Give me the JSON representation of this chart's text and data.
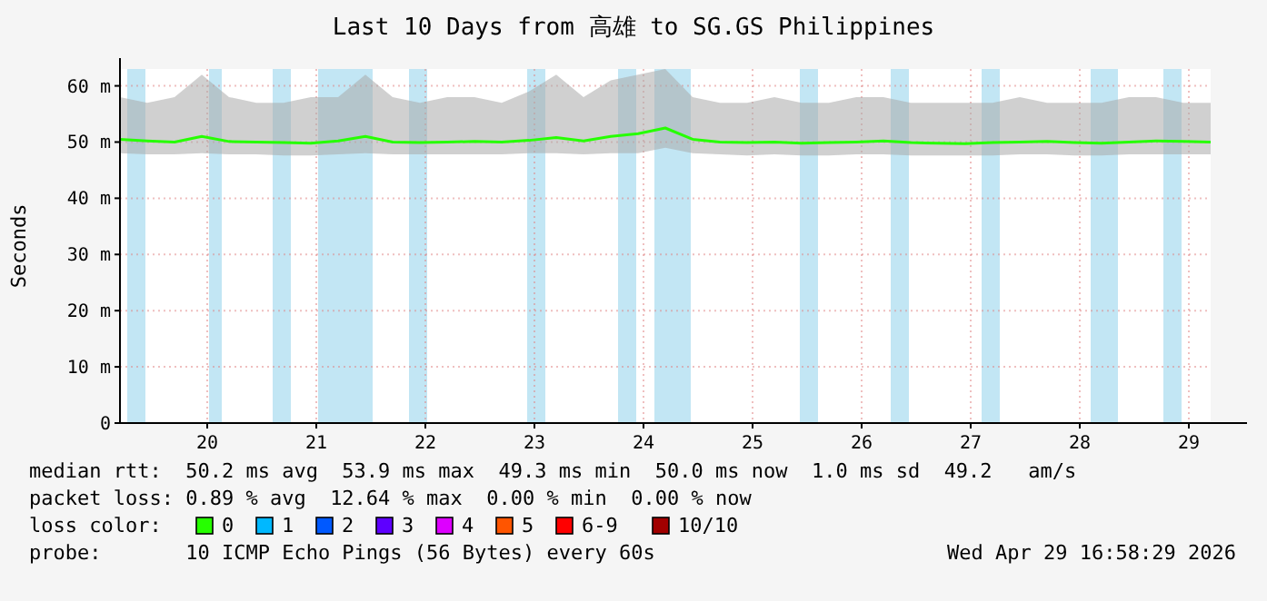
{
  "chart_data": {
    "type": "line",
    "title": "Last 10 Days from 高雄 to SG.GS Philippines",
    "ylabel": "Seconds",
    "x": [
      "2026-04-19T04:48",
      "2026-04-19T10:48",
      "2026-04-19T16:48",
      "2026-04-19T22:48",
      "2026-04-20T04:48",
      "2026-04-20T10:48",
      "2026-04-20T16:48",
      "2026-04-20T22:48",
      "2026-04-21T04:48",
      "2026-04-21T10:48",
      "2026-04-21T16:48",
      "2026-04-21T22:48",
      "2026-04-22T04:48",
      "2026-04-22T10:48",
      "2026-04-22T16:48",
      "2026-04-22T22:48",
      "2026-04-23T04:48",
      "2026-04-23T10:48",
      "2026-04-23T16:48",
      "2026-04-23T22:48",
      "2026-04-24T04:48",
      "2026-04-24T10:48",
      "2026-04-24T16:48",
      "2026-04-24T22:48",
      "2026-04-25T04:48",
      "2026-04-25T10:48",
      "2026-04-25T16:48",
      "2026-04-25T22:48",
      "2026-04-26T04:48",
      "2026-04-26T10:48",
      "2026-04-26T16:48",
      "2026-04-26T22:48",
      "2026-04-27T04:48",
      "2026-04-27T10:48",
      "2026-04-27T16:48",
      "2026-04-27T22:48",
      "2026-04-28T04:48",
      "2026-04-28T10:48",
      "2026-04-28T16:48",
      "2026-04-28T22:48",
      "2026-04-29T04:48"
    ],
    "series": [
      {
        "name": "0",
        "color": "#26ff00",
        "values": [
          50.5,
          50.2,
          50,
          51,
          50.1,
          50,
          49.9,
          49.8,
          50.2,
          51,
          50,
          49.9,
          50,
          50.1,
          50,
          50.3,
          50.8,
          50.2,
          51,
          51.5,
          52.5,
          50.5,
          50,
          49.9,
          50,
          49.8,
          49.9,
          50,
          50.2,
          49.9,
          49.8,
          49.7,
          49.9,
          50,
          50.1,
          49.9,
          49.8,
          50,
          50.2,
          50.1,
          50
        ],
        "lower": [
          48,
          47.8,
          47.8,
          48,
          47.8,
          47.8,
          47.6,
          47.6,
          47.8,
          48,
          47.8,
          47.8,
          47.8,
          47.8,
          47.8,
          48,
          48,
          47.8,
          48,
          48,
          49,
          48,
          47.8,
          47.6,
          47.8,
          47.6,
          47.6,
          47.8,
          47.8,
          47.6,
          47.6,
          47.6,
          47.6,
          47.8,
          47.8,
          47.6,
          47.6,
          47.8,
          47.8,
          47.8,
          47.8
        ],
        "upper": [
          58,
          57,
          58,
          62,
          58,
          57,
          57,
          58,
          58,
          62,
          58,
          57,
          58,
          58,
          57,
          59,
          62,
          58,
          61,
          62,
          63,
          58,
          57,
          57,
          58,
          57,
          57,
          58,
          58,
          57,
          57,
          57,
          57,
          58,
          57,
          57,
          57,
          58,
          58,
          57,
          57
        ]
      },
      {
        "name": "1",
        "color": "#00b8ff",
        "values": [
          null,
          null,
          null,
          null,
          null,
          null,
          null,
          null,
          null,
          null,
          null,
          null,
          null,
          null,
          null,
          null,
          null,
          null,
          null,
          null,
          null,
          null,
          null,
          null,
          null,
          null,
          null,
          null,
          null,
          null,
          null,
          null,
          null,
          null,
          null,
          null,
          null,
          null,
          null,
          null,
          null
        ]
      },
      {
        "name": "2",
        "color": "#0059ff",
        "values": [
          null,
          null,
          null,
          null,
          null,
          null,
          null,
          null,
          null,
          null,
          null,
          null,
          null,
          null,
          null,
          null,
          null,
          null,
          null,
          null,
          null,
          null,
          null,
          null,
          null,
          null,
          null,
          null,
          null,
          null,
          null,
          null,
          null,
          null,
          null,
          null,
          null,
          null,
          null,
          null,
          null
        ]
      },
      {
        "name": "3",
        "color": "#5e00ff",
        "values": [
          null,
          null,
          null,
          null,
          null,
          null,
          null,
          null,
          null,
          null,
          null,
          null,
          null,
          null,
          null,
          null,
          null,
          null,
          null,
          null,
          null,
          null,
          null,
          null,
          null,
          null,
          null,
          null,
          null,
          null,
          null,
          null,
          null,
          null,
          null,
          null,
          null,
          null,
          null,
          null,
          null
        ]
      },
      {
        "name": "4",
        "color": "#dd00ff",
        "values": [
          null,
          null,
          null,
          null,
          null,
          null,
          null,
          null,
          null,
          null,
          null,
          null,
          null,
          null,
          null,
          null,
          null,
          null,
          null,
          null,
          null,
          null,
          null,
          null,
          null,
          null,
          null,
          null,
          null,
          null,
          null,
          null,
          null,
          null,
          null,
          null,
          null,
          null,
          null,
          null,
          null
        ]
      },
      {
        "name": "5",
        "color": "#ff5500",
        "values": [
          null,
          null,
          null,
          null,
          null,
          null,
          null,
          null,
          null,
          null,
          null,
          null,
          null,
          null,
          null,
          null,
          null,
          null,
          null,
          null,
          null,
          null,
          null,
          null,
          null,
          null,
          null,
          null,
          null,
          null,
          null,
          null,
          null,
          null,
          null,
          null,
          null,
          null,
          null,
          null,
          null
        ]
      },
      {
        "name": "6-9",
        "color": "#ff0000",
        "values": [
          null,
          null,
          null,
          null,
          null,
          null,
          null,
          null,
          null,
          null,
          null,
          null,
          null,
          null,
          null,
          null,
          null,
          null,
          null,
          null,
          null,
          null,
          null,
          null,
          null,
          null,
          null,
          null,
          null,
          null,
          null,
          null,
          null,
          null,
          null,
          null,
          null,
          null,
          null,
          null,
          null
        ]
      },
      {
        "name": "10/10",
        "color": "#a10000",
        "values": [
          null,
          null,
          null,
          null,
          null,
          null,
          null,
          null,
          null,
          null,
          null,
          null,
          null,
          null,
          null,
          null,
          null,
          null,
          null,
          null,
          null,
          null,
          null,
          null,
          null,
          null,
          null,
          null,
          null,
          null,
          null,
          null,
          null,
          null,
          null,
          null,
          null,
          null,
          null,
          null,
          null
        ]
      }
    ],
    "legend_title": "loss color:",
    "legend": "bottom",
    "xlim": [
      "2026-04-19T04:48",
      "2026-04-29T04:48"
    ],
    "xticks": [
      {
        "value": "2026-04-20",
        "label": "20"
      },
      {
        "value": "2026-04-21",
        "label": "21"
      },
      {
        "value": "2026-04-22",
        "label": "22"
      },
      {
        "value": "2026-04-23",
        "label": "23"
      },
      {
        "value": "2026-04-24",
        "label": "24"
      },
      {
        "value": "2026-04-25",
        "label": "25"
      },
      {
        "value": "2026-04-26",
        "label": "26"
      },
      {
        "value": "2026-04-27",
        "label": "27"
      },
      {
        "value": "2026-04-28",
        "label": "28"
      },
      {
        "value": "2026-04-29",
        "label": "29"
      }
    ],
    "ylim": [
      0,
      63
    ],
    "yticks": [
      0,
      {
        "value": 10,
        "label": "10 m"
      },
      {
        "value": 20,
        "label": "20 m"
      },
      {
        "value": 30,
        "label": "30 m"
      },
      {
        "value": 40,
        "label": "40 m"
      },
      {
        "value": 50,
        "label": "50 m"
      },
      {
        "value": 60,
        "label": "60 m"
      }
    ],
    "grid": true,
    "bands": [
      {
        "axis": "x",
        "from": "2026-04-19T06:24",
        "to": "2026-04-19T10:24",
        "color": "#a8dcf0"
      },
      {
        "axis": "x",
        "from": "2026-04-20T00:24",
        "to": "2026-04-20T03:12",
        "color": "#a8dcf0"
      },
      {
        "axis": "x",
        "from": "2026-04-20T14:24",
        "to": "2026-04-20T18:24",
        "color": "#a8dcf0"
      },
      {
        "axis": "x",
        "from": "2026-04-21T00:24",
        "to": "2026-04-21T12:24",
        "color": "#a8dcf0"
      },
      {
        "axis": "x",
        "from": "2026-04-21T20:24",
        "to": "2026-04-22T00:24",
        "color": "#a8dcf0"
      },
      {
        "axis": "x",
        "from": "2026-04-22T22:24",
        "to": "2026-04-23T02:24",
        "color": "#a8dcf0"
      },
      {
        "axis": "x",
        "from": "2026-04-23T18:24",
        "to": "2026-04-23T22:24",
        "color": "#a8dcf0"
      },
      {
        "axis": "x",
        "from": "2026-04-24T02:24",
        "to": "2026-04-24T10:24",
        "color": "#a8dcf0"
      },
      {
        "axis": "x",
        "from": "2026-04-25T10:24",
        "to": "2026-04-25T14:24",
        "color": "#a8dcf0"
      },
      {
        "axis": "x",
        "from": "2026-04-26T06:24",
        "to": "2026-04-26T10:24",
        "color": "#a8dcf0"
      },
      {
        "axis": "x",
        "from": "2026-04-27T02:24",
        "to": "2026-04-27T06:24",
        "color": "#a8dcf0"
      },
      {
        "axis": "x",
        "from": "2026-04-28T02:24",
        "to": "2026-04-28T08:24",
        "color": "#a8dcf0"
      },
      {
        "axis": "x",
        "from": "2026-04-28T18:24",
        "to": "2026-04-28T22:24",
        "color": "#a8dcf0"
      }
    ],
    "annotations": [
      "median rtt:  50.2 ms avg  53.9 ms max  49.3 ms min  50.0 ms now  1.0 ms sd  49.2   am/s",
      "packet loss: 0.89 % avg  12.64 % max  0.00 % min  0.00 % now",
      "probe:       10 ICMP Echo Pings (56 Bytes) every 60s",
      "Wed Apr 29 16:58:29 2026"
    ]
  }
}
